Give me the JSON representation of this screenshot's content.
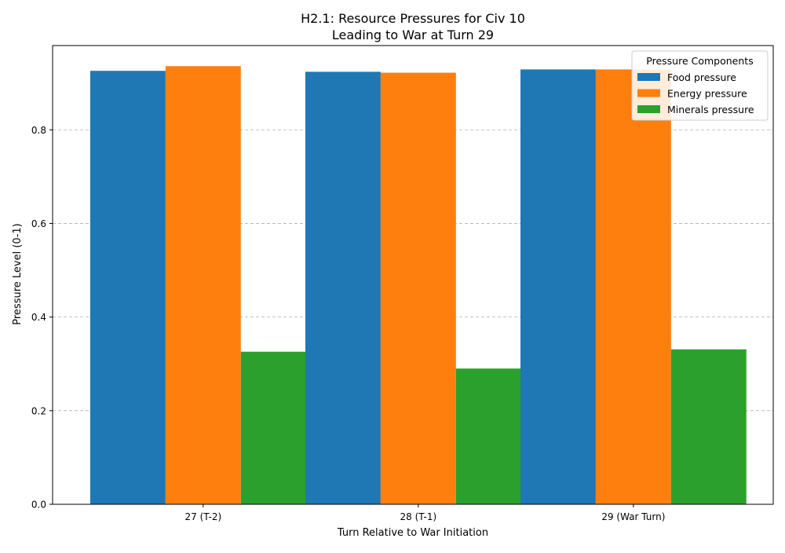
{
  "chart_data": {
    "type": "bar",
    "title_line1": "H2.1: Resource Pressures for Civ 10",
    "title_line2": "Leading to War at Turn 29",
    "xlabel": "Turn Relative to War Initiation",
    "ylabel": "Pressure Level (0-1)",
    "categories": [
      "27 (T-2)",
      "28 (T-1)",
      "29 (War Turn)"
    ],
    "ylim": [
      0,
      0.98
    ],
    "yticks": [
      {
        "value": 0.0,
        "label": "0.0"
      },
      {
        "value": 0.2,
        "label": "0.2"
      },
      {
        "value": 0.4,
        "label": "0.4"
      },
      {
        "value": 0.6,
        "label": "0.6"
      },
      {
        "value": 0.8,
        "label": "0.8"
      }
    ],
    "grid": "horizontal dashed",
    "legend_title": "Pressure Components",
    "legend_position": "top-right",
    "series": [
      {
        "name": "Food pressure",
        "color": "#1f77b4",
        "values": [
          0.926,
          0.924,
          0.929
        ]
      },
      {
        "name": "Energy pressure",
        "color": "#ff7f0e",
        "values": [
          0.936,
          0.922,
          0.929
        ]
      },
      {
        "name": "Minerals pressure",
        "color": "#2ca02c",
        "values": [
          0.326,
          0.29,
          0.331
        ]
      }
    ]
  }
}
